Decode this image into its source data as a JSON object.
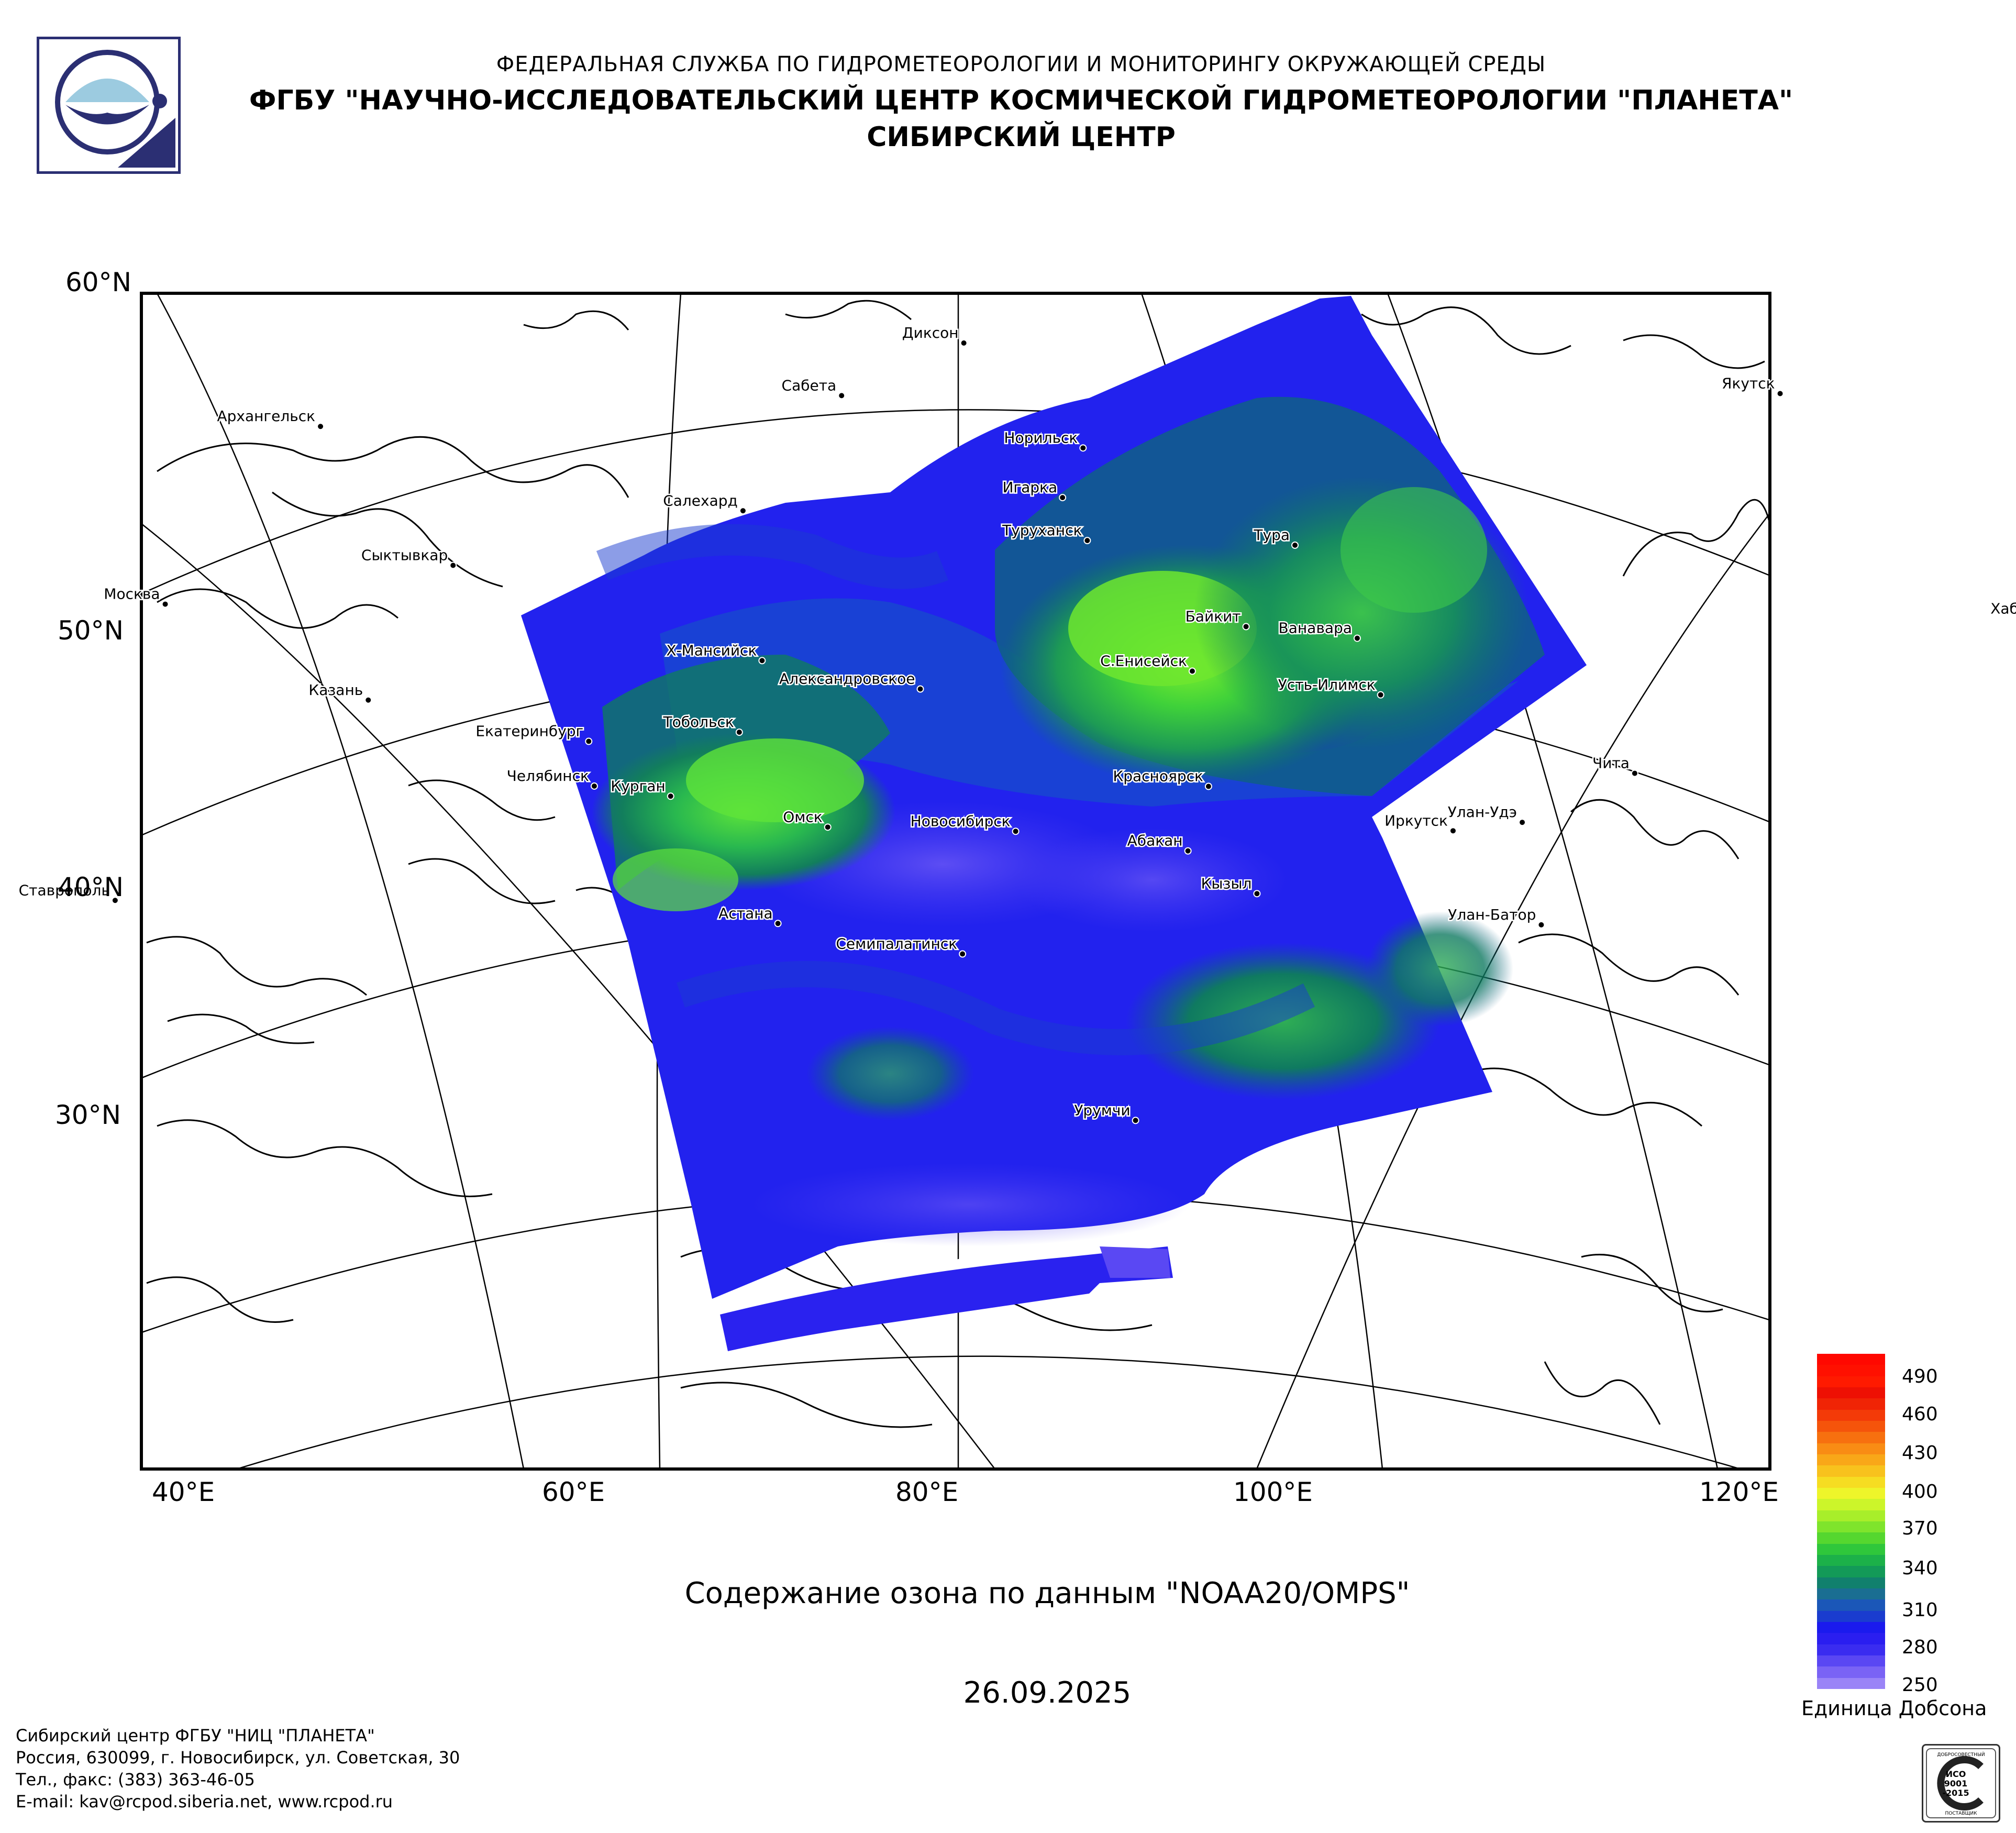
{
  "header": {
    "line1": "ФЕДЕРАЛЬНАЯ СЛУЖБА ПО ГИДРОМЕТЕОРОЛОГИИ И МОНИТОРИНГУ ОКРУЖАЮЩЕЙ СРЕДЫ",
    "line2": "ФГБУ \"НАУЧНО-ИССЛЕДОВАТЕЛЬСКИЙ ЦЕНТР КОСМИЧЕСКОЙ ГИДРОМЕТЕОРОЛОГИИ \"ПЛАНЕТА\"",
    "line3": "СИБИРСКИЙ ЦЕНТР"
  },
  "map": {
    "lat_labels": [
      "60°N",
      "50°N",
      "40°N",
      "30°N"
    ],
    "lon_labels": [
      "40°E",
      "60°E",
      "80°E",
      "100°E",
      "120°E"
    ],
    "cities": [
      {
        "name": "Диксон",
        "lon": 80.4,
        "lat": 73.5
      },
      {
        "name": "Сабета",
        "lon": 72.0,
        "lat": 71.3
      },
      {
        "name": "Норильск",
        "lon": 88.2,
        "lat": 69.3
      },
      {
        "name": "Игарка",
        "lon": 86.6,
        "lat": 67.5
      },
      {
        "name": "Туруханск",
        "lon": 87.9,
        "lat": 65.8
      },
      {
        "name": "Тура",
        "lon": 100.2,
        "lat": 64.3
      },
      {
        "name": "Якутск",
        "lon": 129.7,
        "lat": 62.0
      },
      {
        "name": "Архангельск",
        "lon": 40.5,
        "lat": 64.5
      },
      {
        "name": "Салехард",
        "lon": 66.6,
        "lat": 66.5
      },
      {
        "name": "Сыктывкар",
        "lon": 50.8,
        "lat": 61.7
      },
      {
        "name": "Москва",
        "lon": 37.6,
        "lat": 55.8
      },
      {
        "name": "Х-Мансийск",
        "lon": 69.0,
        "lat": 61.0
      },
      {
        "name": "Байкит",
        "lon": 96.4,
        "lat": 61.7
      },
      {
        "name": "Ванавара",
        "lon": 102.3,
        "lat": 60.3
      },
      {
        "name": "С.Енисейск",
        "lon": 93.0,
        "lat": 60.4
      },
      {
        "name": "Усть-Илимск",
        "lon": 102.7,
        "lat": 58.0
      },
      {
        "name": "Казань",
        "lon": 49.1,
        "lat": 55.8
      },
      {
        "name": "Екатеринбург",
        "lon": 60.6,
        "lat": 56.8
      },
      {
        "name": "Тобольск",
        "lon": 68.3,
        "lat": 58.2
      },
      {
        "name": "Челябинск",
        "lon": 61.4,
        "lat": 55.2
      },
      {
        "name": "Курган",
        "lon": 65.3,
        "lat": 55.4
      },
      {
        "name": "Омск",
        "lon": 73.4,
        "lat": 55.0
      },
      {
        "name": "Александровское",
        "lon": 77.9,
        "lat": 60.4
      },
      {
        "name": "Новосибирск",
        "lon": 82.9,
        "lat": 55.0
      },
      {
        "name": "Красноярск",
        "lon": 92.9,
        "lat": 56.0
      },
      {
        "name": "Абакан",
        "lon": 91.4,
        "lat": 53.7
      },
      {
        "name": "Улан-Удэ",
        "lon": 107.6,
        "lat": 51.8
      },
      {
        "name": "Чита",
        "lon": 113.5,
        "lat": 52.0
      },
      {
        "name": "Иркутск",
        "lon": 104.3,
        "lat": 52.3
      },
      {
        "name": "Кызыл",
        "lon": 94.4,
        "lat": 51.7
      },
      {
        "name": "Хабаровск",
        "lon": 135.1,
        "lat": 48.5
      },
      {
        "name": "Астана",
        "lon": 71.4,
        "lat": 51.2
      },
      {
        "name": "Семипалатинск",
        "lon": 80.2,
        "lat": 50.4
      },
      {
        "name": "Улан-Батор",
        "lon": 106.9,
        "lat": 47.9
      },
      {
        "name": "Ставрополь",
        "lon": 42.0,
        "lat": 45.0
      },
      {
        "name": "Урумчи",
        "lon": 87.6,
        "lat": 43.8
      }
    ]
  },
  "caption": "Содержание озона по данным \"NOAA20/OMPS\"",
  "date": "26.09.2025",
  "legend": {
    "labels": [
      "490",
      "460",
      "430",
      "400",
      "370",
      "340",
      "310",
      "280",
      "250"
    ],
    "unit": "Единица Добсона",
    "min": 250,
    "max": 500
  },
  "footer": {
    "line1": "Сибирский центр ФГБУ \"НИЦ \"ПЛАНЕТА\"",
    "line2": "Россия, 630099, г. Новосибирск, ул. Советская, 30",
    "line3": "Тел., факс: (383) 363-46-05",
    "line4": "E-mail: kav@rcpod.siberia.net, www.rcpod.ru"
  },
  "certificate_text": [
    "ДОБРОСОВЕСТНЫЙ",
    "ИСО",
    "9001",
    "-2015",
    "ПОСТАВЩИК"
  ],
  "colors": {
    "ozone_low": "#6b58f5",
    "ozone_blue": "#2222ee",
    "ozone_deep": "#1a3ccf",
    "ozone_teal": "#0f7a60",
    "ozone_green": "#22b35a",
    "ozone_bright": "#6fe62f",
    "ozone_yellow": "#e9f52a",
    "ozone_orange": "#ff8a00",
    "ozone_red": "#ff1a00"
  }
}
